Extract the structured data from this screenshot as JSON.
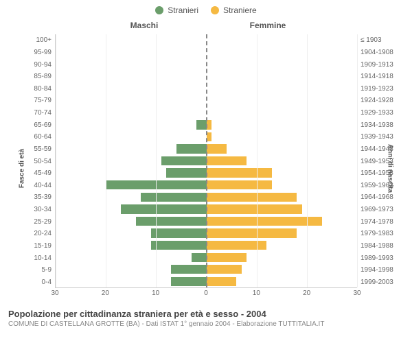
{
  "legend": {
    "male": {
      "label": "Stranieri",
      "color": "#6b9e6b"
    },
    "female": {
      "label": "Straniere",
      "color": "#f5b942"
    }
  },
  "columns": {
    "male": "Maschi",
    "female": "Femmine"
  },
  "axis": {
    "left_title": "Fasce di età",
    "right_title": "Anni di nascita",
    "xticks": [
      30,
      20,
      10,
      0,
      10,
      20,
      30
    ],
    "xmax": 30
  },
  "colors": {
    "grid": "#eeeeee",
    "centerline": "#888888",
    "bg": "#ffffff"
  },
  "rows": [
    {
      "age": "100+",
      "birth": "≤ 1903",
      "m": 0,
      "f": 0
    },
    {
      "age": "95-99",
      "birth": "1904-1908",
      "m": 0,
      "f": 0
    },
    {
      "age": "90-94",
      "birth": "1909-1913",
      "m": 0,
      "f": 0
    },
    {
      "age": "85-89",
      "birth": "1914-1918",
      "m": 0,
      "f": 0
    },
    {
      "age": "80-84",
      "birth": "1919-1923",
      "m": 0,
      "f": 0
    },
    {
      "age": "75-79",
      "birth": "1924-1928",
      "m": 0,
      "f": 0
    },
    {
      "age": "70-74",
      "birth": "1929-1933",
      "m": 0,
      "f": 0
    },
    {
      "age": "65-69",
      "birth": "1934-1938",
      "m": 2,
      "f": 1
    },
    {
      "age": "60-64",
      "birth": "1939-1943",
      "m": 0,
      "f": 1
    },
    {
      "age": "55-59",
      "birth": "1944-1948",
      "m": 6,
      "f": 4
    },
    {
      "age": "50-54",
      "birth": "1949-1953",
      "m": 9,
      "f": 8
    },
    {
      "age": "45-49",
      "birth": "1954-1958",
      "m": 8,
      "f": 13
    },
    {
      "age": "40-44",
      "birth": "1959-1963",
      "m": 20,
      "f": 13
    },
    {
      "age": "35-39",
      "birth": "1964-1968",
      "m": 13,
      "f": 18
    },
    {
      "age": "30-34",
      "birth": "1969-1973",
      "m": 17,
      "f": 19
    },
    {
      "age": "25-29",
      "birth": "1974-1978",
      "m": 14,
      "f": 23
    },
    {
      "age": "20-24",
      "birth": "1979-1983",
      "m": 11,
      "f": 18
    },
    {
      "age": "15-19",
      "birth": "1984-1988",
      "m": 11,
      "f": 12
    },
    {
      "age": "10-14",
      "birth": "1989-1993",
      "m": 3,
      "f": 8
    },
    {
      "age": "5-9",
      "birth": "1994-1998",
      "m": 7,
      "f": 7
    },
    {
      "age": "0-4",
      "birth": "1999-2003",
      "m": 7,
      "f": 6
    }
  ],
  "footer": {
    "title": "Popolazione per cittadinanza straniera per età e sesso - 2004",
    "subtitle": "COMUNE DI CASTELLANA GROTTE (BA) - Dati ISTAT 1° gennaio 2004 - Elaborazione TUTTITALIA.IT"
  }
}
